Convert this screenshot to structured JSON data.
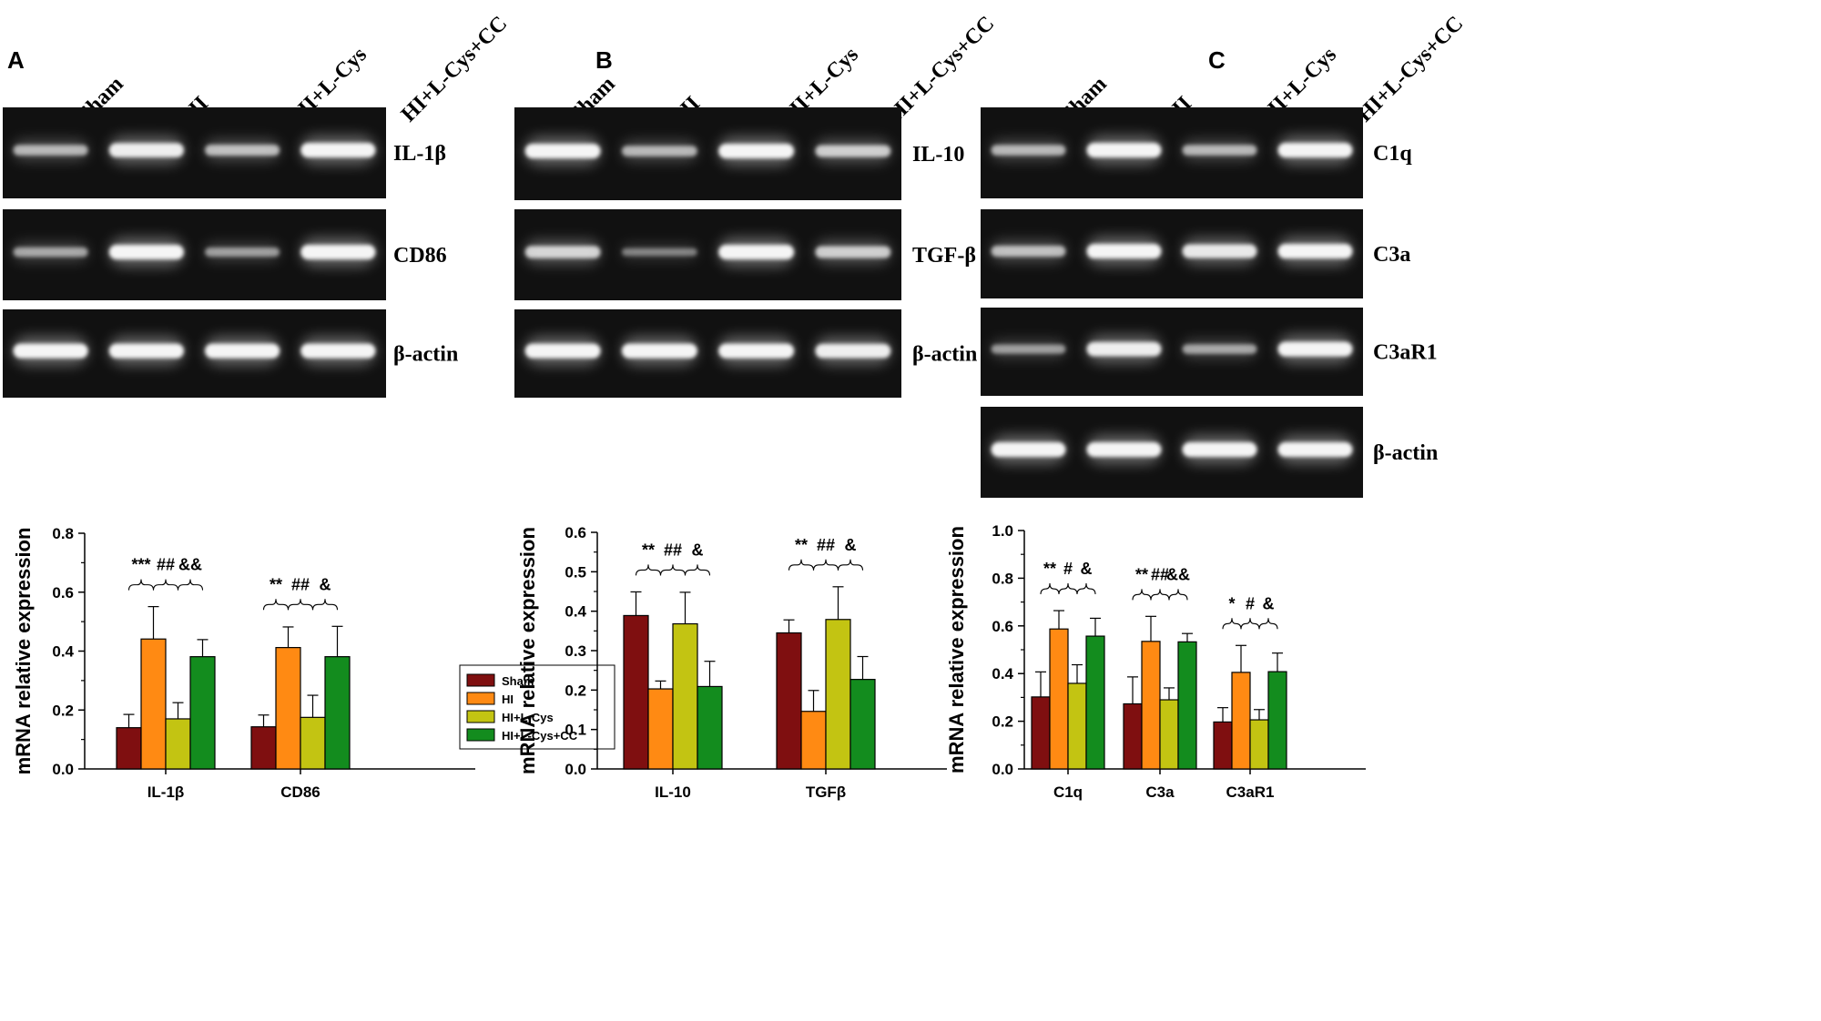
{
  "colors": {
    "Sham": "#7f0f10",
    "HI": "#ff8a13",
    "HI+L-Cys": "#c3c412",
    "HI+L-Cys+CC": "#138c1e",
    "gel_background": "#111111",
    "band": "#f5f5f5"
  },
  "lanes": [
    "Sham",
    "HI",
    "HI+L-Cys",
    "HI+L-Cys+CC"
  ],
  "panels": [
    {
      "letter": "A",
      "gels": [
        {
          "label": "IL-1β",
          "intensity": [
            0.55,
            0.95,
            0.6,
            1.0
          ]
        },
        {
          "label": "CD86",
          "intensity": [
            0.45,
            1.0,
            0.4,
            1.0
          ]
        },
        {
          "label": "β-actin",
          "intensity": [
            1.0,
            1.0,
            1.0,
            1.0
          ]
        }
      ]
    },
    {
      "letter": "B",
      "gels": [
        {
          "label": "IL-10",
          "intensity": [
            1.0,
            0.55,
            1.0,
            0.7
          ]
        },
        {
          "label": "TGF-β",
          "intensity": [
            0.75,
            0.25,
            1.0,
            0.7
          ]
        },
        {
          "label": "β-actin",
          "intensity": [
            1.0,
            1.0,
            1.0,
            0.95
          ]
        }
      ]
    },
    {
      "letter": "C",
      "gels": [
        {
          "label": "C1q",
          "intensity": [
            0.55,
            1.0,
            0.55,
            1.0
          ]
        },
        {
          "label": "C3a",
          "intensity": [
            0.6,
            1.0,
            0.9,
            1.0
          ]
        },
        {
          "label": "C3aR1",
          "intensity": [
            0.4,
            0.95,
            0.45,
            1.0
          ]
        },
        {
          "label": "β-actin",
          "intensity": [
            1.0,
            1.0,
            1.0,
            1.0
          ]
        }
      ]
    }
  ],
  "chart_data": [
    {
      "type": "bar",
      "panel": "A",
      "categories": [
        "IL-1β",
        "CD86"
      ],
      "series": [
        {
          "name": "Sham",
          "values": [
            0.14,
            0.143
          ],
          "errors": [
            0.045,
            0.04
          ]
        },
        {
          "name": "HI",
          "values": [
            0.441,
            0.412
          ],
          "errors": [
            0.11,
            0.07
          ]
        },
        {
          "name": "HI+L-Cys",
          "values": [
            0.17,
            0.175
          ],
          "errors": [
            0.055,
            0.075
          ]
        },
        {
          "name": "HI+L-Cys+CC",
          "values": [
            0.381,
            0.381
          ],
          "errors": [
            0.058,
            0.103
          ]
        }
      ],
      "ylabel": "mRNA relative expression",
      "ylim": [
        0,
        0.8
      ],
      "yticks": [
        "0.0",
        "0.2",
        "0.4",
        "0.6",
        "0.8"
      ],
      "significance": [
        [
          "***",
          "##",
          "&&"
        ],
        [
          "**",
          "##",
          "&"
        ]
      ],
      "legend": {
        "position": "top-right",
        "entries": [
          "Sham",
          "HI",
          "HI+L-Cys",
          "HI+L-Cys+CC"
        ]
      }
    },
    {
      "type": "bar",
      "panel": "B",
      "categories": [
        "IL-10",
        "TGFβ"
      ],
      "series": [
        {
          "name": "Sham",
          "values": [
            0.389,
            0.345
          ],
          "errors": [
            0.06,
            0.033
          ]
        },
        {
          "name": "HI",
          "values": [
            0.203,
            0.146
          ],
          "errors": [
            0.02,
            0.053
          ]
        },
        {
          "name": "HI+L-Cys",
          "values": [
            0.368,
            0.379
          ],
          "errors": [
            0.08,
            0.083
          ]
        },
        {
          "name": "HI+L-Cys+CC",
          "values": [
            0.209,
            0.227
          ],
          "errors": [
            0.064,
            0.058
          ]
        }
      ],
      "ylabel": "mRNA relative expression",
      "ylim": [
        0,
        0.6
      ],
      "yticks": [
        "0.0",
        "0.1",
        "0.2",
        "0.3",
        "0.4",
        "0.5",
        "0.6"
      ],
      "significance": [
        [
          "**",
          "##",
          "&"
        ],
        [
          "**",
          "##",
          "&"
        ]
      ]
    },
    {
      "type": "bar",
      "panel": "C",
      "categories": [
        "C1q",
        "C3a",
        "C3aR1"
      ],
      "series": [
        {
          "name": "Sham",
          "values": [
            0.302,
            0.273,
            0.197
          ],
          "errors": [
            0.105,
            0.113,
            0.06
          ]
        },
        {
          "name": "HI",
          "values": [
            0.587,
            0.535,
            0.405
          ],
          "errors": [
            0.077,
            0.105,
            0.113
          ]
        },
        {
          "name": "HI+L-Cys",
          "values": [
            0.359,
            0.29,
            0.206
          ],
          "errors": [
            0.078,
            0.05,
            0.043
          ]
        },
        {
          "name": "HI+L-Cys+CC",
          "values": [
            0.557,
            0.533,
            0.408
          ],
          "errors": [
            0.075,
            0.035,
            0.078
          ]
        }
      ],
      "ylabel": "mRNA relative expression",
      "ylim": [
        0,
        1.0
      ],
      "yticks": [
        "0.0",
        "0.2",
        "0.4",
        "0.6",
        "0.8",
        "1.0"
      ],
      "significance": [
        [
          "**",
          "#",
          "&"
        ],
        [
          "**",
          "##",
          "&&"
        ],
        [
          "*",
          "#",
          "&"
        ]
      ]
    }
  ]
}
